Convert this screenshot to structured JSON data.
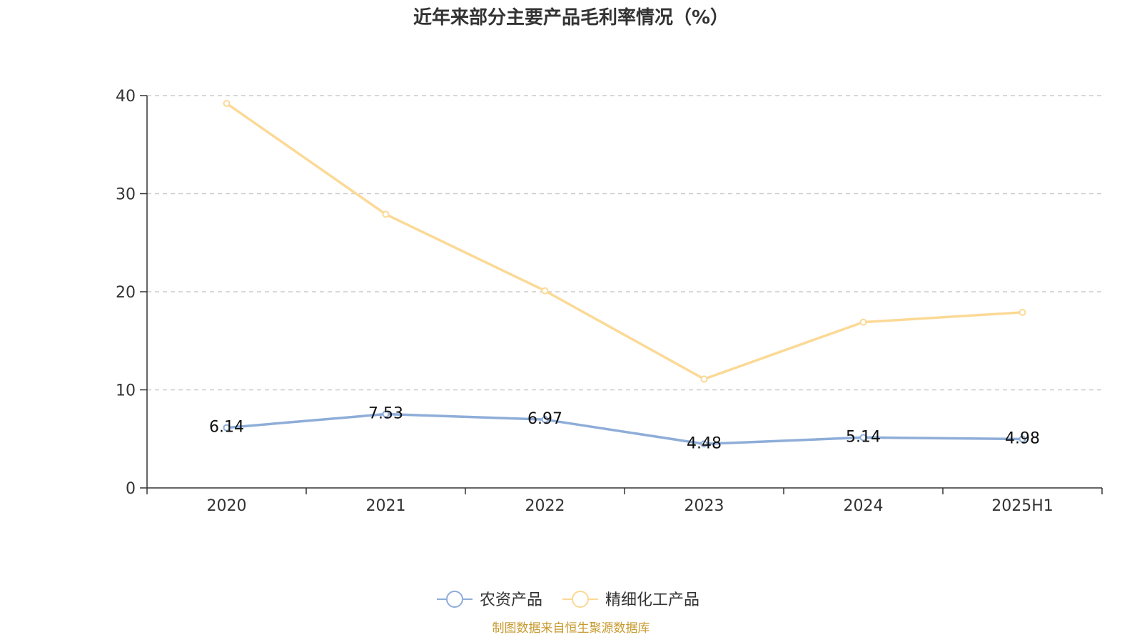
{
  "chart_data": {
    "type": "line",
    "title": "近年来部分主要产品毛利率情况（%）",
    "categories": [
      "2020",
      "2021",
      "2022",
      "2023",
      "2024",
      "2025H1"
    ],
    "series": [
      {
        "name": "农资产品",
        "color": "#8eadd8",
        "values": [
          6.14,
          7.53,
          6.97,
          4.48,
          5.14,
          4.98
        ],
        "labels": [
          "6.14",
          "7.53",
          "6.97",
          "4.48",
          "5.14",
          "4.98"
        ]
      },
      {
        "name": "精细化工产品",
        "color": "#fbd996",
        "values": [
          39.2,
          27.9,
          20.1,
          11.1,
          16.9,
          17.9
        ]
      }
    ],
    "ylim": [
      0,
      40
    ],
    "yticks": [
      "0",
      "10",
      "20",
      "30",
      "40"
    ],
    "grid": true,
    "legend": "bottom-center",
    "xlabel": "",
    "ylabel": ""
  },
  "source": {
    "text": "制图数据来自恒生聚源数据库",
    "color": "#c79a2e"
  }
}
